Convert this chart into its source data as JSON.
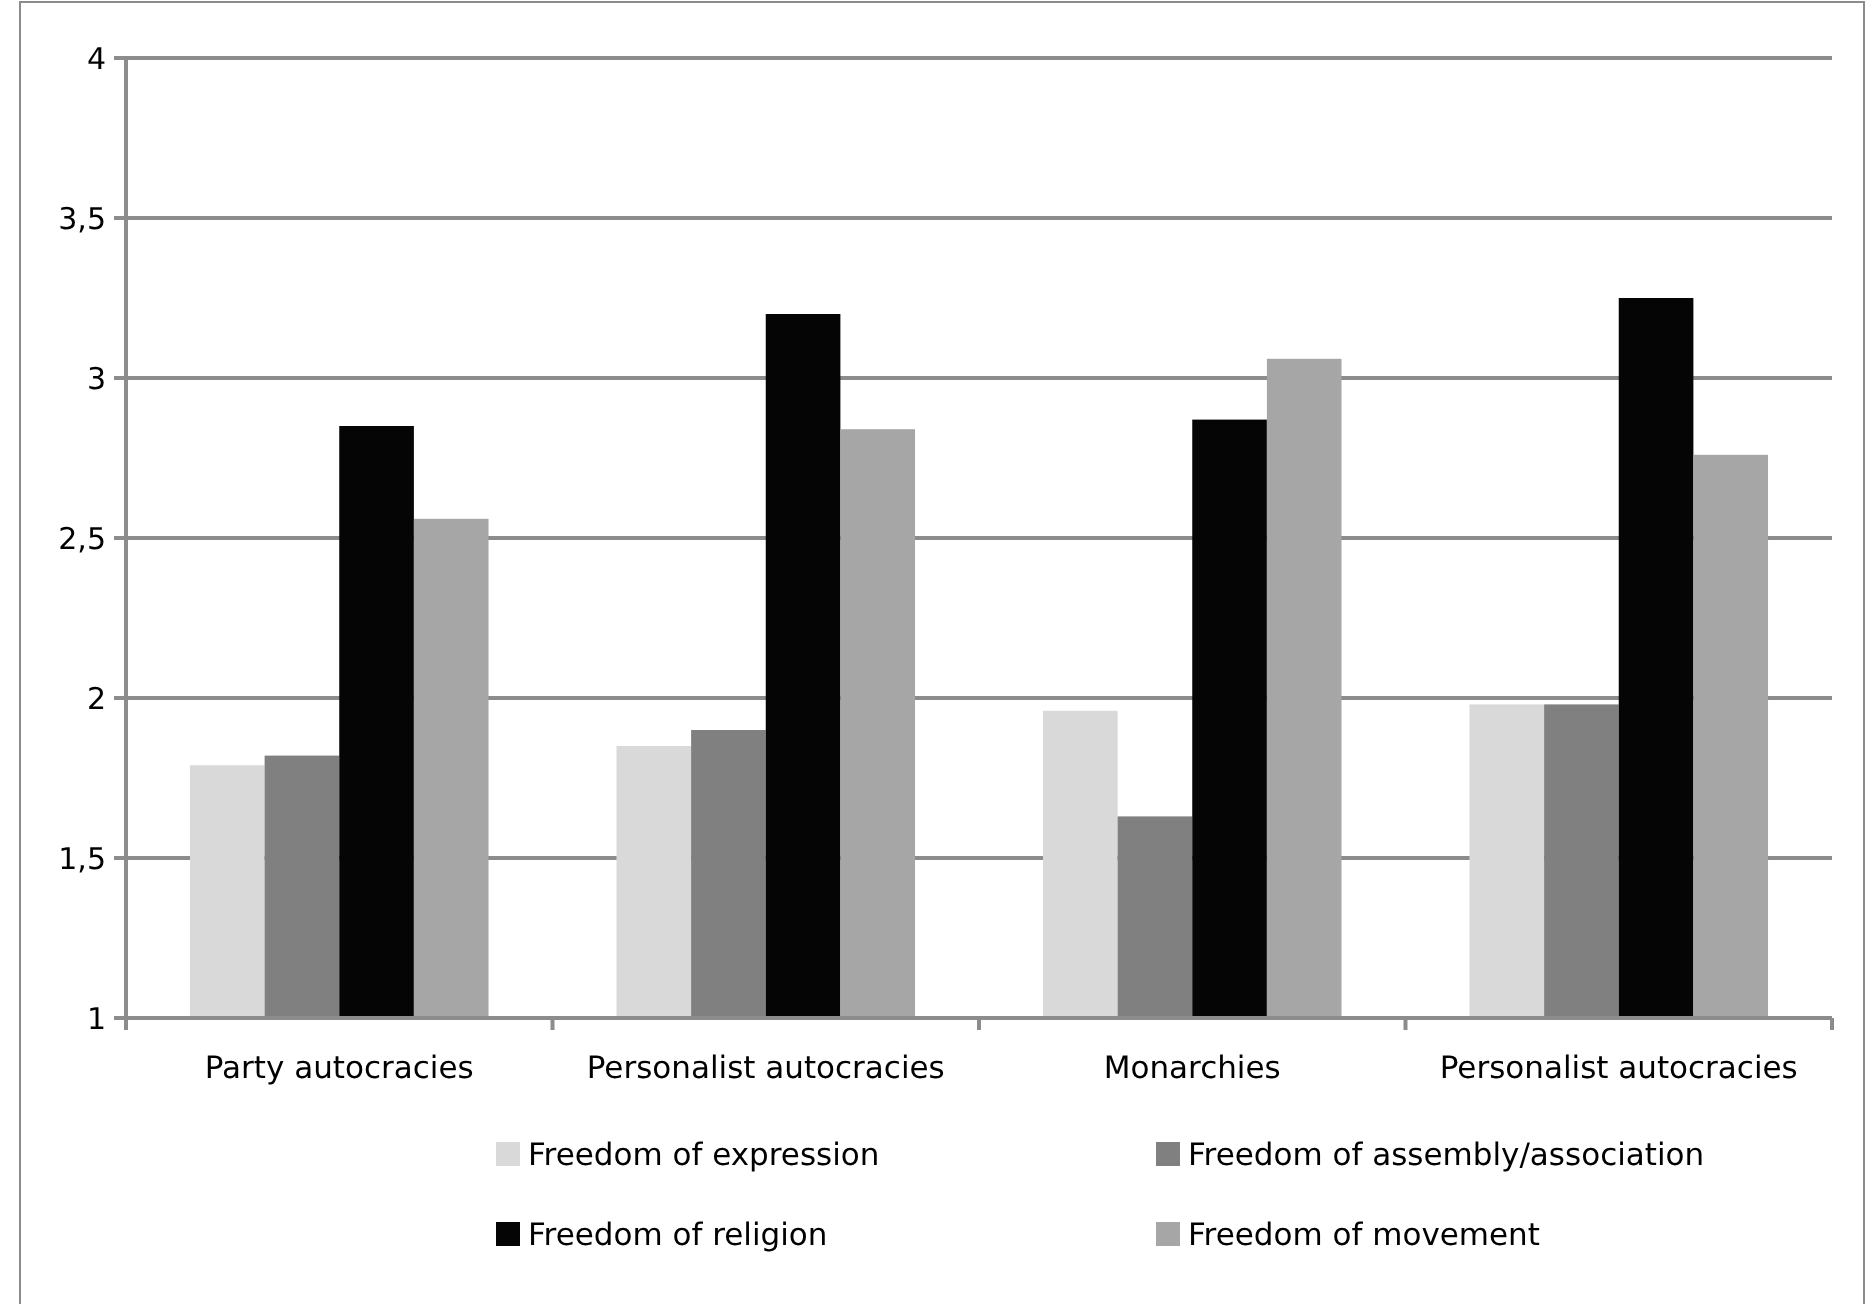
{
  "chart_data": {
    "type": "bar",
    "categories": [
      "Party autocracies",
      "Personalist autocracies",
      "Monarchies",
      "Personalist autocracies"
    ],
    "series": [
      {
        "name": "Freedom of expression",
        "color": "#d9d9d9",
        "values": [
          1.79,
          1.85,
          1.96,
          1.98
        ]
      },
      {
        "name": "Freedom of assembly/association",
        "color": "#808080",
        "values": [
          1.82,
          1.9,
          1.63,
          1.98
        ]
      },
      {
        "name": "Freedom of religion",
        "color": "#050505",
        "values": [
          2.85,
          3.2,
          2.87,
          3.25
        ]
      },
      {
        "name": "Freedom of movement",
        "color": "#a6a6a6",
        "values": [
          2.56,
          2.84,
          3.06,
          2.76
        ]
      }
    ],
    "ylim": [
      1,
      4
    ],
    "yticks": [
      1,
      {
        "value": 1.5,
        "label": "1,5"
      },
      2,
      {
        "value": 2.5,
        "label": "2,5"
      },
      3,
      {
        "value": 3.5,
        "label": "3,5"
      },
      4
    ],
    "grid": "y",
    "legend": "bottom"
  }
}
